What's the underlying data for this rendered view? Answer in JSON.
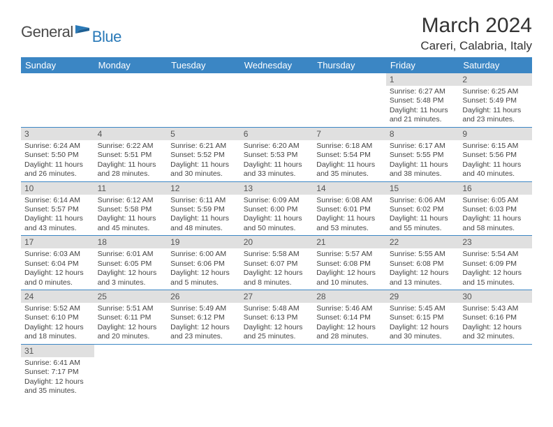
{
  "logo": {
    "text1": "General",
    "text2": "Blue"
  },
  "title": "March 2024",
  "location": "Careri, Calabria, Italy",
  "colors": {
    "header_bg": "#3b86c4",
    "header_text": "#ffffff",
    "daybar_bg": "#e0e0e0",
    "daybar_text": "#555555",
    "cell_text": "#444444",
    "rule": "#3b86c4",
    "title_text": "#333333",
    "logo_gray": "#4a4a4a",
    "logo_blue": "#2a7ab8"
  },
  "daynames": [
    "Sunday",
    "Monday",
    "Tuesday",
    "Wednesday",
    "Thursday",
    "Friday",
    "Saturday"
  ],
  "cells": [
    null,
    null,
    null,
    null,
    null,
    {
      "n": "1",
      "sr": "6:27 AM",
      "ss": "5:48 PM",
      "dl": "11 hours and 21 minutes."
    },
    {
      "n": "2",
      "sr": "6:25 AM",
      "ss": "5:49 PM",
      "dl": "11 hours and 23 minutes."
    },
    {
      "n": "3",
      "sr": "6:24 AM",
      "ss": "5:50 PM",
      "dl": "11 hours and 26 minutes."
    },
    {
      "n": "4",
      "sr": "6:22 AM",
      "ss": "5:51 PM",
      "dl": "11 hours and 28 minutes."
    },
    {
      "n": "5",
      "sr": "6:21 AM",
      "ss": "5:52 PM",
      "dl": "11 hours and 30 minutes."
    },
    {
      "n": "6",
      "sr": "6:20 AM",
      "ss": "5:53 PM",
      "dl": "11 hours and 33 minutes."
    },
    {
      "n": "7",
      "sr": "6:18 AM",
      "ss": "5:54 PM",
      "dl": "11 hours and 35 minutes."
    },
    {
      "n": "8",
      "sr": "6:17 AM",
      "ss": "5:55 PM",
      "dl": "11 hours and 38 minutes."
    },
    {
      "n": "9",
      "sr": "6:15 AM",
      "ss": "5:56 PM",
      "dl": "11 hours and 40 minutes."
    },
    {
      "n": "10",
      "sr": "6:14 AM",
      "ss": "5:57 PM",
      "dl": "11 hours and 43 minutes."
    },
    {
      "n": "11",
      "sr": "6:12 AM",
      "ss": "5:58 PM",
      "dl": "11 hours and 45 minutes."
    },
    {
      "n": "12",
      "sr": "6:11 AM",
      "ss": "5:59 PM",
      "dl": "11 hours and 48 minutes."
    },
    {
      "n": "13",
      "sr": "6:09 AM",
      "ss": "6:00 PM",
      "dl": "11 hours and 50 minutes."
    },
    {
      "n": "14",
      "sr": "6:08 AM",
      "ss": "6:01 PM",
      "dl": "11 hours and 53 minutes."
    },
    {
      "n": "15",
      "sr": "6:06 AM",
      "ss": "6:02 PM",
      "dl": "11 hours and 55 minutes."
    },
    {
      "n": "16",
      "sr": "6:05 AM",
      "ss": "6:03 PM",
      "dl": "11 hours and 58 minutes."
    },
    {
      "n": "17",
      "sr": "6:03 AM",
      "ss": "6:04 PM",
      "dl": "12 hours and 0 minutes."
    },
    {
      "n": "18",
      "sr": "6:01 AM",
      "ss": "6:05 PM",
      "dl": "12 hours and 3 minutes."
    },
    {
      "n": "19",
      "sr": "6:00 AM",
      "ss": "6:06 PM",
      "dl": "12 hours and 5 minutes."
    },
    {
      "n": "20",
      "sr": "5:58 AM",
      "ss": "6:07 PM",
      "dl": "12 hours and 8 minutes."
    },
    {
      "n": "21",
      "sr": "5:57 AM",
      "ss": "6:08 PM",
      "dl": "12 hours and 10 minutes."
    },
    {
      "n": "22",
      "sr": "5:55 AM",
      "ss": "6:08 PM",
      "dl": "12 hours and 13 minutes."
    },
    {
      "n": "23",
      "sr": "5:54 AM",
      "ss": "6:09 PM",
      "dl": "12 hours and 15 minutes."
    },
    {
      "n": "24",
      "sr": "5:52 AM",
      "ss": "6:10 PM",
      "dl": "12 hours and 18 minutes."
    },
    {
      "n": "25",
      "sr": "5:51 AM",
      "ss": "6:11 PM",
      "dl": "12 hours and 20 minutes."
    },
    {
      "n": "26",
      "sr": "5:49 AM",
      "ss": "6:12 PM",
      "dl": "12 hours and 23 minutes."
    },
    {
      "n": "27",
      "sr": "5:48 AM",
      "ss": "6:13 PM",
      "dl": "12 hours and 25 minutes."
    },
    {
      "n": "28",
      "sr": "5:46 AM",
      "ss": "6:14 PM",
      "dl": "12 hours and 28 minutes."
    },
    {
      "n": "29",
      "sr": "5:45 AM",
      "ss": "6:15 PM",
      "dl": "12 hours and 30 minutes."
    },
    {
      "n": "30",
      "sr": "5:43 AM",
      "ss": "6:16 PM",
      "dl": "12 hours and 32 minutes."
    },
    {
      "n": "31",
      "sr": "6:41 AM",
      "ss": "7:17 PM",
      "dl": "12 hours and 35 minutes."
    },
    null,
    null,
    null,
    null,
    null,
    null
  ],
  "labels": {
    "sunrise": "Sunrise:",
    "sunset": "Sunset:",
    "daylight": "Daylight:"
  }
}
